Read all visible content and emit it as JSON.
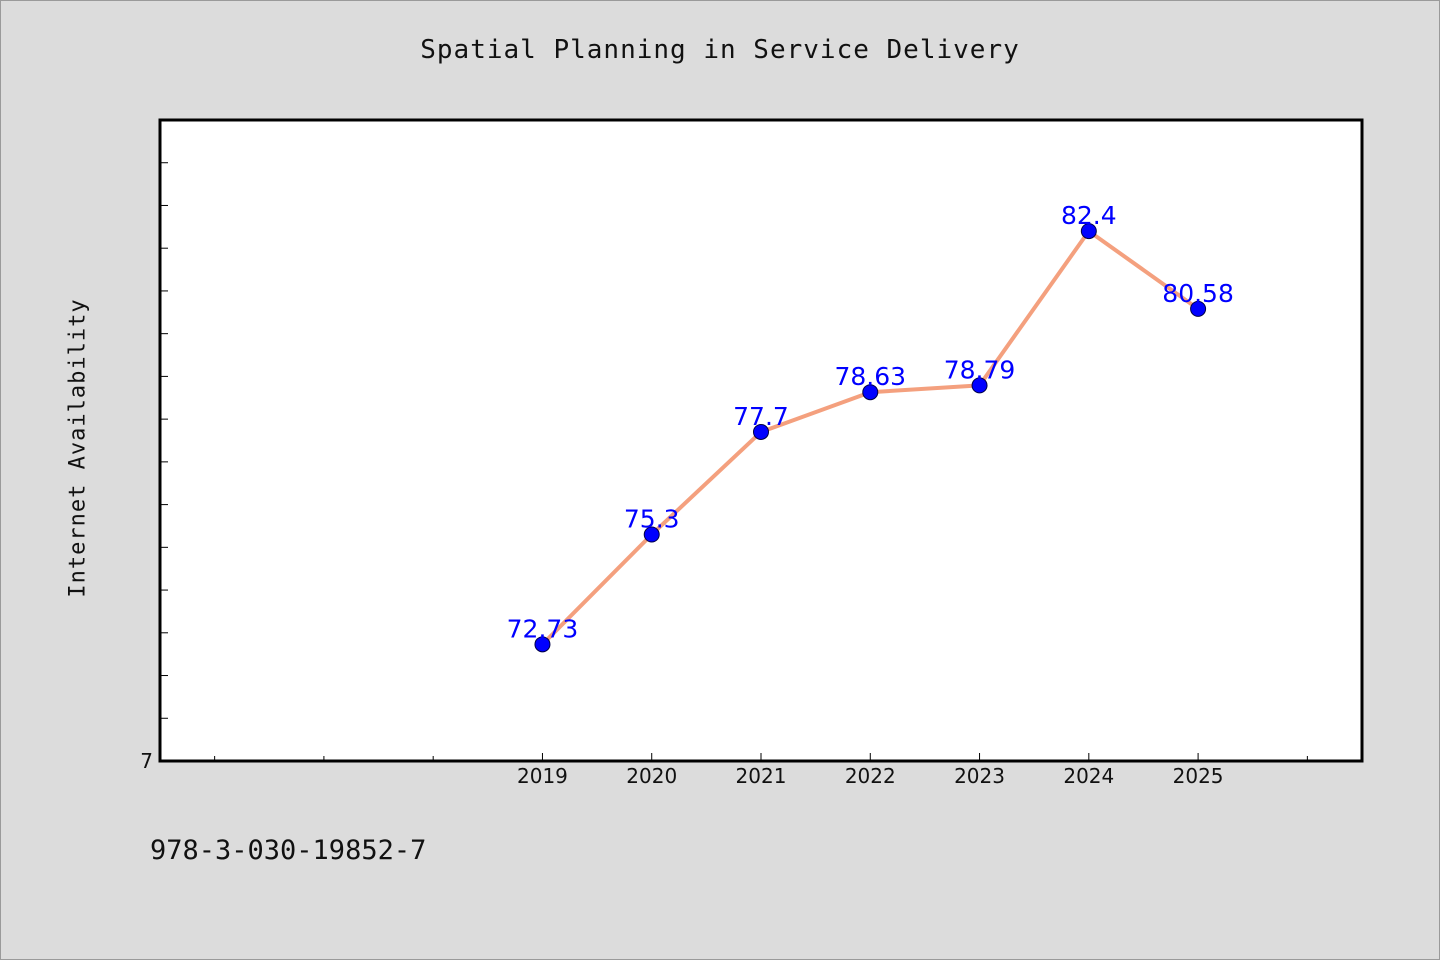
{
  "chart_data": {
    "type": "line",
    "title": "Spatial Planning in Service Delivery",
    "ylabel": "Internet Availability",
    "xlabel": "",
    "x": [
      "2019",
      "2020",
      "2021",
      "2022",
      "2023",
      "2024",
      "2025"
    ],
    "series": [
      {
        "values": [
          72.73,
          75.3,
          77.7,
          78.63,
          78.79,
          82.4,
          80.58
        ],
        "labels": [
          "72.73",
          "75.3",
          "77.7",
          "78.63",
          "78.79",
          "82.4",
          "80.58"
        ]
      }
    ],
    "y_tick_label": "7",
    "ylim": [
      70,
      85
    ],
    "xlim": [
      2015.5,
      2026.5
    ],
    "grid": false,
    "line_color": "#f4a07e",
    "marker_color": "#0000ff",
    "label_color": "#0000ff",
    "background": "#dcdcdc",
    "plot_background": "#ffffff"
  },
  "footnote": "978-3-030-19852-7"
}
